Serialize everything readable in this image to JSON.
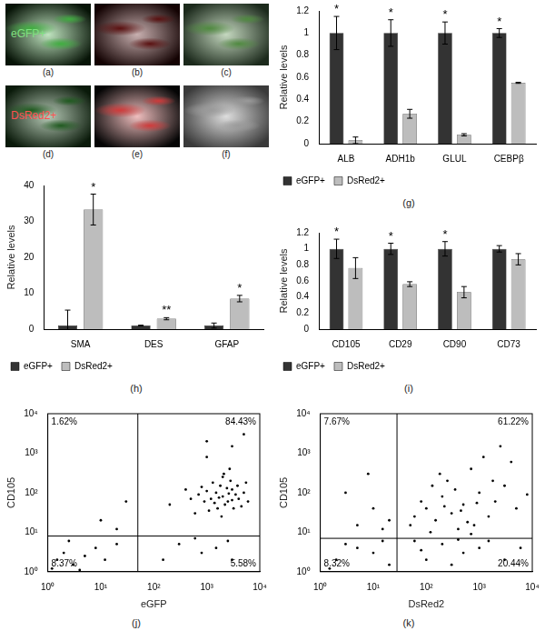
{
  "image_panels": [
    {
      "label": "(a)",
      "text": "eGFP+",
      "color": "#3fae3f"
    },
    {
      "label": "(b)",
      "color": "#5a1010"
    },
    {
      "label": "(c)",
      "color": "#4f8a3f"
    },
    {
      "label": "(d)",
      "text": "DsRed2+",
      "color": "#1f5a1f"
    },
    {
      "label": "(e)",
      "color": "#d03a3a"
    },
    {
      "label": "(f)",
      "color": "#9a9a9a"
    }
  ],
  "chart_data": [
    {
      "type": "bar",
      "label": "(g)",
      "y_label": "Relative levels",
      "categories": [
        "ALB",
        "ADH1b",
        "GLUL",
        "CEBPβ"
      ],
      "series": [
        {
          "name": "eGFP+",
          "color": "#333333",
          "values": [
            1,
            1,
            1,
            1
          ],
          "errors": [
            0.15,
            0.12,
            0.1,
            0.04
          ],
          "significance": [
            "*",
            "*",
            "*",
            "*"
          ]
        },
        {
          "name": "DsRed2+",
          "color": "#bdbdbd",
          "values": [
            0.03,
            0.27,
            0.08,
            0.55
          ],
          "errors": [
            0.03,
            0.04,
            0.01,
            0.005
          ]
        }
      ],
      "ylim": [
        0,
        1.2
      ],
      "yticks": [
        0,
        0.2,
        0.4,
        0.6,
        0.8,
        1,
        1.2
      ],
      "grid": false,
      "legend": "bottom"
    },
    {
      "type": "bar",
      "label": "(h)",
      "y_label": "Relative levels",
      "categories": [
        "SMA",
        "DES",
        "GFAP"
      ],
      "series": [
        {
          "name": "eGFP+",
          "color": "#333333",
          "values": [
            1,
            1,
            1
          ],
          "errors": [
            4.3,
            0.1,
            0.7
          ]
        },
        {
          "name": "DsRed2+",
          "color": "#bdbdbd",
          "values": [
            33.3,
            2.9,
            8.5
          ],
          "errors": [
            4.3,
            0.3,
            0.9
          ],
          "significance": [
            "*",
            "**",
            "*"
          ]
        }
      ],
      "ylim": [
        0,
        40
      ],
      "yticks": [
        0,
        10,
        20,
        30,
        40
      ],
      "grid": false,
      "legend": "bottom"
    },
    {
      "type": "bar",
      "label": "(i)",
      "y_label": "Relative levels",
      "categories": [
        "CD105",
        "CD29",
        "CD90",
        "CD73"
      ],
      "series": [
        {
          "name": "eGFP+",
          "color": "#333333",
          "values": [
            1,
            1,
            1,
            1
          ],
          "errors": [
            0.12,
            0.07,
            0.09,
            0.04
          ],
          "significance": [
            "*",
            "*",
            "*",
            null
          ]
        },
        {
          "name": "DsRed2+",
          "color": "#bdbdbd",
          "values": [
            0.76,
            0.56,
            0.46,
            0.87
          ],
          "errors": [
            0.13,
            0.03,
            0.07,
            0.07
          ]
        }
      ],
      "ylim": [
        0,
        1.2
      ],
      "yticks": [
        0,
        0.2,
        0.4,
        0.6,
        0.8,
        1,
        1.2
      ],
      "grid": false,
      "legend": "bottom"
    },
    {
      "type": "scatter",
      "label": "(j)",
      "x_label": "eGFP",
      "y_label": "CD105",
      "log": true,
      "grid": false,
      "color": "#000000",
      "marker": "circle",
      "x": [
        2000,
        1500,
        2500,
        3000,
        1200,
        1800,
        2200,
        3500,
        1000,
        2800,
        4000,
        1600,
        900,
        2400,
        5000,
        700,
        3200,
        1300,
        2000,
        6000,
        1100,
        2600,
        1700,
        3800,
        800,
        4500,
        500,
        2100,
        1400,
        3000,
        600,
        400,
        2700,
        1900,
        200,
        1000,
        5500,
        1000,
        3000,
        5000,
        300,
        1500,
        800,
        2500,
        150,
        3000,
        600,
        1.5,
        2,
        3,
        5,
        8,
        2.5,
        12,
        20,
        1.2,
        4,
        10,
        30,
        20
      ],
      "values": [
        80,
        100,
        60,
        120,
        70,
        150,
        50,
        90,
        110,
        200,
        70,
        40,
        60,
        130,
        100,
        90,
        40,
        180,
        250,
        60,
        35,
        95,
        75,
        150,
        140,
        45,
        70,
        300,
        55,
        65,
        30,
        120,
        400,
        25,
        50,
        800,
        180,
        2000,
        1500,
        3000,
        5,
        4,
        3,
        6,
        2,
        2,
        7,
        2,
        3,
        1.5,
        2.5,
        4,
        6,
        2,
        5,
        1.2,
        1.1,
        20,
        60,
        12
      ],
      "gates": {
        "x": 50,
        "y": 8
      },
      "annotations": [
        "1.62%",
        "84.43%",
        "8.37%",
        "5.58%"
      ],
      "xlim": [
        1,
        10000
      ],
      "ylim": [
        1,
        10000
      ],
      "xticks": [
        {
          "value": 1,
          "label": "10⁰"
        },
        {
          "value": 10,
          "label": "10¹"
        },
        {
          "value": 100,
          "label": "10²"
        },
        {
          "value": 1000,
          "label": "10³"
        },
        {
          "value": 10000,
          "label": "10⁴"
        }
      ],
      "yticks": [
        {
          "value": 1,
          "label": "10⁰"
        },
        {
          "value": 10,
          "label": "10¹"
        },
        {
          "value": 100,
          "label": "10²"
        },
        {
          "value": 1000,
          "label": "10³"
        },
        {
          "value": 10000,
          "label": "10⁴"
        }
      ]
    },
    {
      "type": "scatter",
      "label": "(k)",
      "x_label": "DsRed2",
      "y_label": "CD105",
      "log": true,
      "grid": false,
      "color": "#000000",
      "marker": "circle",
      "x": [
        300,
        150,
        500,
        800,
        200,
        1000,
        100,
        400,
        60,
        2000,
        250,
        700,
        1500,
        3000,
        120,
        80,
        600,
        350,
        5000,
        1200,
        2500,
        450,
        180,
        900,
        50,
        4000,
        220,
        700,
        1800,
        8000,
        130,
        200,
        500,
        100,
        1000,
        60,
        3000,
        300,
        1500,
        80,
        6000,
        400,
        5,
        10,
        20,
        3,
        15,
        8,
        2,
        5,
        10,
        1.5,
        15,
        3,
        20
      ],
      "values": [
        30,
        20,
        50,
        15,
        80,
        100,
        40,
        12,
        25,
        60,
        200,
        400,
        25,
        150,
        10,
        60,
        18,
        120,
        40,
        800,
        1500,
        35,
        300,
        55,
        15,
        600,
        45,
        9,
        200,
        90,
        150,
        5,
        3,
        2,
        4,
        6,
        2,
        1.5,
        6,
        3.5,
        4,
        6.5,
        15,
        40,
        20,
        100,
        12,
        300,
        2,
        4,
        3,
        1.2,
        6,
        5,
        1.5
      ],
      "gates": {
        "x": 28,
        "y": 7
      },
      "annotations": [
        "7.67%",
        "61.22%",
        "8.32%",
        "20.44%"
      ],
      "xlim": [
        1,
        10000
      ],
      "ylim": [
        1,
        10000
      ],
      "xticks": [
        {
          "value": 1,
          "label": "10⁰"
        },
        {
          "value": 10,
          "label": "10¹"
        },
        {
          "value": 100,
          "label": "10²"
        },
        {
          "value": 1000,
          "label": "10³"
        },
        {
          "value": 10000,
          "label": "10⁴"
        }
      ],
      "yticks": [
        {
          "value": 1,
          "label": "10⁰"
        },
        {
          "value": 10,
          "label": "10¹"
        },
        {
          "value": 100,
          "label": "10²"
        },
        {
          "value": 1000,
          "label": "10³"
        },
        {
          "value": 10000,
          "label": "10⁴"
        }
      ]
    }
  ]
}
